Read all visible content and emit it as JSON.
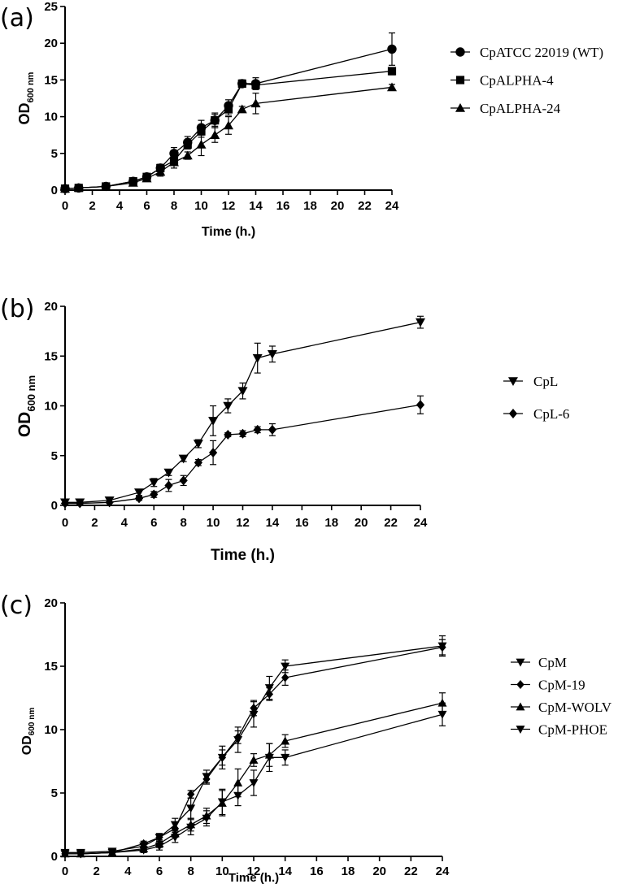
{
  "chart_data": [
    {
      "type": "line",
      "panel": "(a)",
      "xlabel": "Time (h.)",
      "ylabel": "OD",
      "ylabel_sub": "600 nm",
      "xlim": [
        0,
        24
      ],
      "ylim": [
        0,
        25
      ],
      "xticks": [
        0,
        2,
        4,
        6,
        8,
        10,
        12,
        14,
        16,
        18,
        20,
        22,
        24
      ],
      "yticks": [
        0,
        5,
        10,
        15,
        20,
        25
      ],
      "x": [
        0,
        1,
        3,
        5,
        6,
        7,
        8,
        9,
        10,
        11,
        12,
        13,
        14,
        24
      ],
      "series": [
        {
          "name": "CpATCC 22019 (WT)",
          "marker": "circle",
          "values": [
            0.2,
            0.3,
            0.5,
            1.2,
            1.8,
            3.0,
            5.0,
            6.5,
            8.5,
            9.5,
            11.5,
            14.5,
            14.5,
            19.2
          ],
          "errors": [
            0.1,
            0.1,
            0.1,
            0.2,
            0.3,
            0.5,
            0.8,
            0.8,
            1.0,
            1.0,
            0.8,
            0.5,
            0.8,
            2.2
          ]
        },
        {
          "name": "CpALPHA-4",
          "marker": "square",
          "values": [
            0.2,
            0.3,
            0.5,
            1.2,
            1.8,
            3.0,
            4.0,
            6.2,
            8.0,
            9.5,
            11.0,
            14.5,
            14.3,
            16.2
          ],
          "errors": [
            0.1,
            0.1,
            0.1,
            0.2,
            0.3,
            0.5,
            0.6,
            0.6,
            0.8,
            0.8,
            0.8,
            0.5,
            0.6,
            0.5
          ]
        },
        {
          "name": "CpALPHA-24",
          "marker": "triangle-up",
          "values": [
            0.2,
            0.3,
            0.5,
            1.0,
            1.6,
            2.5,
            3.8,
            4.7,
            6.2,
            7.5,
            8.8,
            11.0,
            11.8,
            14.0
          ],
          "errors": [
            0.1,
            0.1,
            0.1,
            0.2,
            0.3,
            0.6,
            0.8,
            0.5,
            1.5,
            1.0,
            1.2,
            0.4,
            1.4,
            0.4
          ]
        }
      ]
    },
    {
      "type": "line",
      "panel": "(b)",
      "xlabel": "Time (h.)",
      "ylabel": "OD",
      "ylabel_sub": "600 nm",
      "xlim": [
        0,
        24
      ],
      "ylim": [
        0,
        20
      ],
      "xticks": [
        0,
        2,
        4,
        6,
        8,
        10,
        12,
        14,
        16,
        18,
        20,
        22,
        24
      ],
      "yticks": [
        0,
        5,
        10,
        15,
        20
      ],
      "x": [
        0,
        1,
        3,
        5,
        6,
        7,
        8,
        9,
        10,
        11,
        12,
        13,
        14,
        24
      ],
      "series": [
        {
          "name": "CpL",
          "marker": "triangle-down",
          "values": [
            0.3,
            0.3,
            0.5,
            1.3,
            2.3,
            3.3,
            4.7,
            6.2,
            8.5,
            10.0,
            11.5,
            14.8,
            15.2,
            18.4
          ],
          "errors": [
            0.1,
            0.1,
            0.1,
            0.3,
            0.4,
            0.3,
            0.3,
            0.4,
            1.5,
            0.7,
            0.8,
            1.5,
            0.8,
            0.6
          ]
        },
        {
          "name": "CpL-6",
          "marker": "diamond",
          "values": [
            0.2,
            0.2,
            0.3,
            0.7,
            1.1,
            2.0,
            2.5,
            4.3,
            5.3,
            7.1,
            7.2,
            7.6,
            7.6,
            10.1
          ],
          "errors": [
            0.1,
            0.1,
            0.1,
            0.2,
            0.3,
            0.6,
            0.5,
            0.3,
            1.2,
            0.2,
            0.3,
            0.3,
            0.6,
            0.9
          ]
        }
      ]
    },
    {
      "type": "line",
      "panel": "(c)",
      "xlabel": "Time (h.)",
      "ylabel": "OD",
      "ylabel_sub": "600 nm",
      "xlim": [
        0,
        24
      ],
      "ylim": [
        0,
        20
      ],
      "xticks": [
        0,
        2,
        4,
        6,
        8,
        10,
        12,
        14,
        16,
        18,
        20,
        22,
        24
      ],
      "yticks": [
        0,
        5,
        10,
        15,
        20
      ],
      "x": [
        0,
        1,
        3,
        5,
        6,
        7,
        8,
        9,
        10,
        11,
        12,
        13,
        14,
        24
      ],
      "series": [
        {
          "name": "CpM",
          "marker": "triangle-down",
          "values": [
            0.3,
            0.3,
            0.4,
            0.8,
            1.5,
            2.5,
            3.8,
            6.3,
            7.8,
            9.2,
            11.2,
            13.3,
            15.0,
            16.6
          ],
          "errors": [
            0.1,
            0.1,
            0.1,
            0.3,
            0.3,
            0.5,
            0.8,
            0.5,
            0.9,
            1.0,
            1.0,
            0.9,
            0.5,
            0.8
          ]
        },
        {
          "name": "CpM-19",
          "marker": "diamond",
          "values": [
            0.2,
            0.2,
            0.3,
            1.0,
            1.5,
            2.2,
            4.9,
            6.1,
            7.8,
            9.4,
            11.7,
            12.8,
            14.1,
            16.5
          ],
          "errors": [
            0.1,
            0.1,
            0.1,
            0.2,
            0.3,
            0.5,
            0.3,
            0.4,
            0.6,
            0.5,
            0.6,
            0.5,
            0.6,
            0.6
          ]
        },
        {
          "name": "CpM-WOLV",
          "marker": "triangle-up",
          "values": [
            0.2,
            0.2,
            0.3,
            0.6,
            1.0,
            1.8,
            2.5,
            3.2,
            4.2,
            5.8,
            7.6,
            8.0,
            9.1,
            12.1
          ],
          "errors": [
            0.1,
            0.1,
            0.1,
            0.2,
            0.3,
            0.3,
            0.5,
            0.6,
            1.0,
            1.1,
            0.5,
            0.9,
            0.5,
            0.8
          ]
        },
        {
          "name": "CpM-PHOE",
          "marker": "triangle-down",
          "values": [
            0.2,
            0.2,
            0.3,
            0.5,
            0.8,
            1.5,
            2.3,
            3.0,
            4.3,
            4.8,
            5.8,
            7.8,
            7.8,
            11.2
          ],
          "errors": [
            0.1,
            0.1,
            0.1,
            0.2,
            0.3,
            0.4,
            0.6,
            0.6,
            1.0,
            0.8,
            1.0,
            1.1,
            0.6,
            0.9
          ]
        }
      ]
    }
  ]
}
